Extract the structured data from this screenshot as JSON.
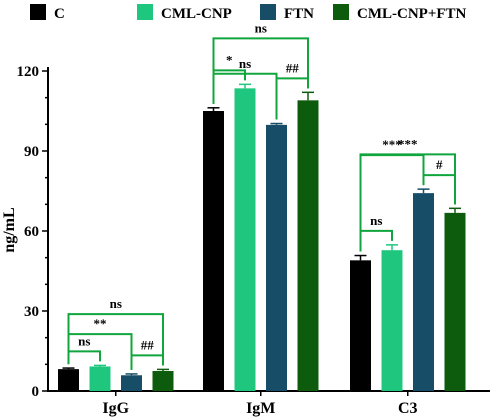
{
  "chart_data": {
    "type": "bar",
    "title": "",
    "xlabel": "",
    "ylabel": "ng/mL",
    "ylim": [
      0,
      120
    ],
    "yticks": [
      0,
      30,
      60,
      90,
      120
    ],
    "ytick_labels": [
      "0",
      "30",
      "60",
      "90",
      "120"
    ],
    "grid": false,
    "legend_position": "top",
    "categories": [
      "IgG",
      "IgM",
      "C3"
    ],
    "series": [
      {
        "name": "C",
        "color": "#000000",
        "values": [
          8.2,
          105.0,
          49.0
        ],
        "errors": [
          0.4,
          1.2,
          1.8
        ]
      },
      {
        "name": "CML-CNP",
        "color": "#1fc77e",
        "values": [
          9.2,
          113.5,
          52.8
        ],
        "errors": [
          0.4,
          1.5,
          2.0
        ]
      },
      {
        "name": "FTN",
        "color": "#174d66",
        "values": [
          5.9,
          99.8,
          74.2
        ],
        "errors": [
          0.5,
          0.5,
          1.5
        ]
      },
      {
        "name": "CML-CNP+FTN",
        "color": "#0d5c0d",
        "values": [
          7.5,
          109.0,
          66.8
        ],
        "errors": [
          0.6,
          3.0,
          1.7
        ]
      }
    ],
    "annotations": [
      {
        "group": 0,
        "from": 0,
        "to": 3,
        "level": 3,
        "label": "ns"
      },
      {
        "group": 0,
        "from": 0,
        "to": 2,
        "level": 2,
        "label": "**"
      },
      {
        "group": 0,
        "from": 0,
        "to": 1,
        "level": 1,
        "label": "ns"
      },
      {
        "group": 0,
        "from": 2,
        "to": 3,
        "level": 1,
        "label": "##"
      },
      {
        "group": 1,
        "from": 0,
        "to": 3,
        "level": 3,
        "label": "ns"
      },
      {
        "group": 1,
        "from": 0,
        "to": 2,
        "level": 2,
        "label": "ns"
      },
      {
        "group": 1,
        "from": 0,
        "to": 1,
        "level": 1,
        "label": "*"
      },
      {
        "group": 1,
        "from": 2,
        "to": 3,
        "level": 1,
        "label": "##"
      },
      {
        "group": 2,
        "from": 0,
        "to": 3,
        "level": 3,
        "label": "***"
      },
      {
        "group": 2,
        "from": 0,
        "to": 2,
        "level": 2,
        "label": "***"
      },
      {
        "group": 2,
        "from": 0,
        "to": 1,
        "level": 1,
        "label": "ns"
      },
      {
        "group": 2,
        "from": 2,
        "to": 3,
        "level": 1,
        "label": "#"
      }
    ]
  }
}
